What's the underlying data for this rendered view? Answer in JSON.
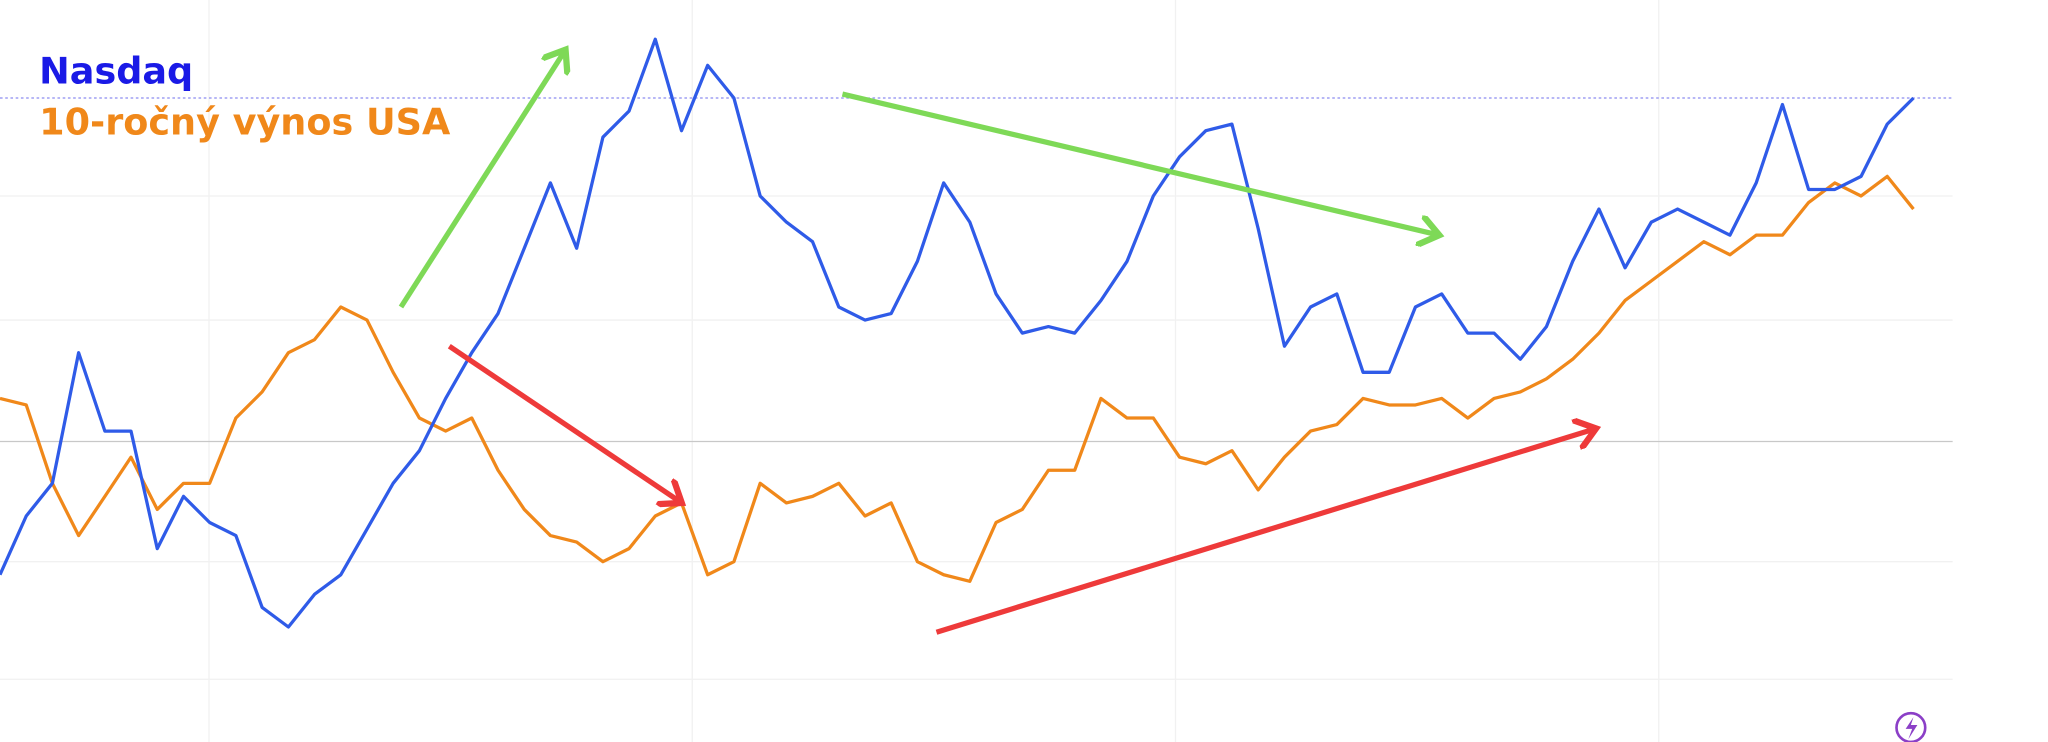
{
  "chart_data": {
    "type": "line",
    "ylim": [
      0,
      568
    ],
    "series": [
      {
        "name": "Nasdaq",
        "color": "#2f5be8",
        "values": [
          128,
          173,
          198,
          298,
          238,
          238,
          148,
          188,
          168,
          158,
          103,
          88,
          113,
          128,
          163,
          198,
          223,
          263,
          298,
          328,
          378,
          428,
          378,
          463,
          483,
          538,
          468,
          518,
          493,
          418,
          398,
          383,
          333,
          323,
          328,
          368,
          428,
          398,
          343,
          313,
          318,
          313,
          338,
          368,
          418,
          448,
          468,
          473,
          393,
          303,
          333,
          343,
          283,
          283,
          333,
          343,
          313,
          313,
          293,
          318,
          368,
          408,
          363,
          398,
          408,
          398,
          388,
          428,
          488,
          423,
          423,
          433,
          473,
          493
        ]
      },
      {
        "name": "10-ročný výnos USA",
        "color": "#f0881a",
        "values": [
          263,
          258,
          198,
          158,
          188,
          218,
          178,
          198,
          198,
          248,
          268,
          298,
          308,
          333,
          323,
          283,
          248,
          238,
          248,
          208,
          178,
          158,
          153,
          138,
          148,
          173,
          183,
          128,
          138,
          198,
          183,
          188,
          198,
          173,
          183,
          138,
          128,
          123,
          168,
          178,
          208,
          208,
          263,
          248,
          248,
          218,
          213,
          223,
          193,
          218,
          238,
          243,
          263,
          258,
          258,
          263,
          248,
          263,
          268,
          278,
          293,
          313,
          338,
          353,
          368,
          383,
          373,
          388,
          388,
          413,
          428,
          418,
          433,
          408
        ]
      }
    ]
  }
}
